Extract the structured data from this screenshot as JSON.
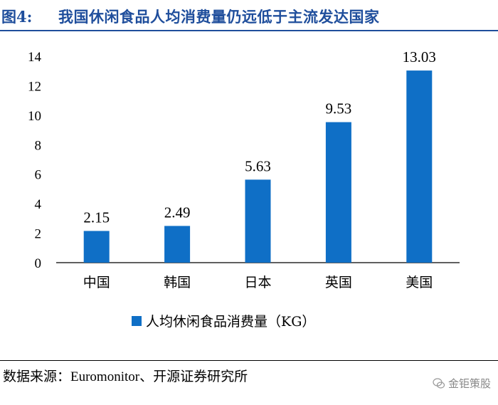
{
  "header": {
    "fig_label": "图4:",
    "title": "我国休闲食品人均消费量仍远低于主流发达国家"
  },
  "chart_data": {
    "type": "bar",
    "categories": [
      "中国",
      "韩国",
      "日本",
      "英国",
      "美国"
    ],
    "series": [
      {
        "name": "人均休闲食品消费量（KG）",
        "values": [
          2.15,
          2.49,
          5.63,
          9.53,
          13.03
        ]
      }
    ],
    "data_labels": [
      "2.15",
      "2.49",
      "5.63",
      "9.53",
      "13.03"
    ],
    "ylim": [
      0,
      14
    ],
    "yticks": [
      0,
      2,
      4,
      6,
      8,
      10,
      12,
      14
    ],
    "grid": false,
    "legend_position": "bottom",
    "bar_color": "#0f6fc6"
  },
  "footer": {
    "source": "数据来源：Euromonitor、开源证券研究所",
    "watermark": "金钜策股"
  }
}
